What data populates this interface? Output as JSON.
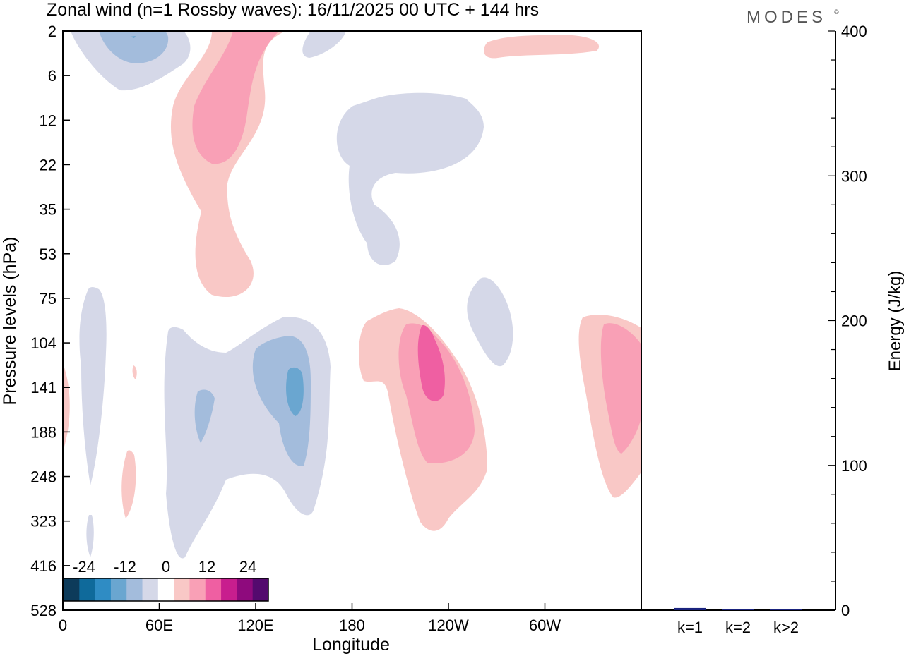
{
  "header": {
    "title": "Zonal wind (n=1 Rossby waves):  16/11/2025  00 UTC  + 144 hrs",
    "brand": "MODES",
    "brand_mark": "©"
  },
  "chart_data": [
    {
      "type": "heatmap",
      "title": "Zonal wind (n=1 Rossby waves)",
      "xlabel": "Longitude",
      "ylabel": "Pressure levels (hPa)",
      "x_ticks": [
        "0",
        "60E",
        "120E",
        "180",
        "120W",
        "60W"
      ],
      "y_ticks": [
        "2",
        "6",
        "12",
        "22",
        "35",
        "53",
        "75",
        "104",
        "141",
        "188",
        "248",
        "323",
        "416",
        "528"
      ],
      "levels": [
        -30,
        -25,
        -20,
        -15,
        -10,
        -5,
        0,
        5,
        10,
        15,
        20,
        25,
        30
      ],
      "colorbar_labels": [
        "-24",
        "-12",
        "0",
        "12",
        "24"
      ],
      "colors": [
        "#0d3b5a",
        "#0f6a9b",
        "#2f8cc4",
        "#6aa6d0",
        "#a3bcdc",
        "#d5d8e8",
        "#ffffff",
        "#f9c8c6",
        "#f9a0b6",
        "#ef5fa2",
        "#c81e8e",
        "#8e0a7d",
        "#540a6e"
      ],
      "features": [
        {
          "sign": "negative",
          "max_level": -15,
          "lon_center": 50,
          "pressure": "2-6 hPa"
        },
        {
          "sign": "positive",
          "max_level": 10,
          "lon_center": 95,
          "pressure": "2-75 hPa"
        },
        {
          "sign": "negative",
          "max_level": -5,
          "lon_center": 195,
          "pressure": "8-53 hPa"
        },
        {
          "sign": "positive",
          "max_level": 5,
          "lon_center": 290,
          "pressure": "2-6 hPa"
        },
        {
          "sign": "negative",
          "max_level": -15,
          "lon_center": 145,
          "pressure": "100-330 hPa"
        },
        {
          "sign": "positive",
          "max_level": 15,
          "lon_center": 230,
          "pressure": "90-330 hPa"
        },
        {
          "sign": "negative",
          "max_level": -5,
          "lon_center": 265,
          "pressure": "60-150 hPa"
        },
        {
          "sign": "positive",
          "max_level": 10,
          "lon_center": 345,
          "pressure": "95-300 hPa"
        }
      ]
    },
    {
      "type": "bar",
      "ylabel": "Energy (J/kg)",
      "categories": [
        "k=1",
        "k=2",
        "k>2"
      ],
      "values": [
        1.5,
        0.2,
        0.3
      ],
      "ylim": [
        0,
        400
      ],
      "y_ticks": [
        "0",
        "100",
        "200",
        "300",
        "400"
      ],
      "color": "#1a237e"
    }
  ]
}
